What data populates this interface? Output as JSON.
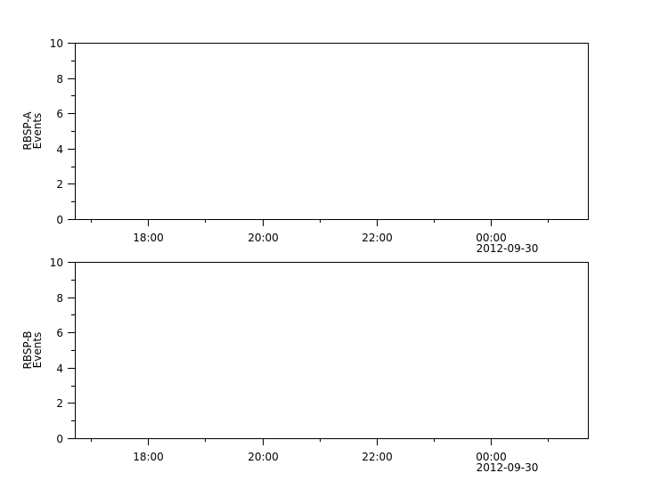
{
  "chart_data": [
    {
      "type": "line",
      "ylabel_lines": [
        "RBSP-A",
        "Events"
      ],
      "ylim": [
        0,
        10
      ],
      "y_major_ticks": [
        0,
        2,
        4,
        6,
        8,
        10
      ],
      "y_minor_ticks": [
        1,
        3,
        5,
        7,
        9
      ],
      "y_tick_labels": [
        "0",
        "2",
        "4",
        "6",
        "8",
        "10"
      ],
      "xlim": [
        "2012-09-29T16:43",
        "2012-09-30T01:42"
      ],
      "x_major_ticks": [
        "2012-09-29T18:00",
        "2012-09-29T20:00",
        "2012-09-29T22:00",
        "2012-09-30T00:00"
      ],
      "x_minor_ticks": [
        "2012-09-29T17:00",
        "2012-09-29T19:00",
        "2012-09-29T21:00",
        "2012-09-29T23:00",
        "2012-09-30T01:00"
      ],
      "x_tick_labels": [
        "18:00",
        "20:00",
        "22:00",
        "00:00"
      ],
      "x_date_label": "2012-09-30",
      "series": [],
      "grid": false
    },
    {
      "type": "line",
      "ylabel_lines": [
        "RBSP-B",
        "Events"
      ],
      "ylim": [
        0,
        10
      ],
      "y_major_ticks": [
        0,
        2,
        4,
        6,
        8,
        10
      ],
      "y_minor_ticks": [
        1,
        3,
        5,
        7,
        9
      ],
      "y_tick_labels": [
        "0",
        "2",
        "4",
        "6",
        "8",
        "10"
      ],
      "xlim": [
        "2012-09-29T16:43",
        "2012-09-30T01:42"
      ],
      "x_major_ticks": [
        "2012-09-29T18:00",
        "2012-09-29T20:00",
        "2012-09-29T22:00",
        "2012-09-30T00:00"
      ],
      "x_minor_ticks": [
        "2012-09-29T17:00",
        "2012-09-29T19:00",
        "2012-09-29T21:00",
        "2012-09-29T23:00",
        "2012-09-30T01:00"
      ],
      "x_tick_labels": [
        "18:00",
        "20:00",
        "22:00",
        "00:00"
      ],
      "x_date_label": "2012-09-30",
      "series": [],
      "grid": false
    }
  ]
}
